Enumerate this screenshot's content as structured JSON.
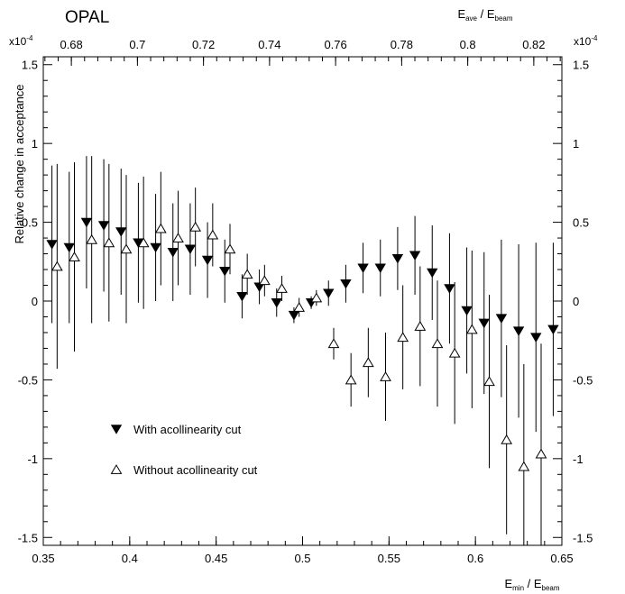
{
  "chart_data": {
    "type": "scatter",
    "experiment_label": "OPAL",
    "ylabel": "Relative change in acceptance",
    "x_bottom": {
      "label_main": "E",
      "label_sub": "min",
      "label_sep": " / E",
      "label_sub2": "beam",
      "range": [
        0.35,
        0.65
      ],
      "ticks": [
        "0.35",
        "0.4",
        "0.45",
        "0.5",
        "0.55",
        "0.6",
        "0.65"
      ]
    },
    "x_top": {
      "label_main": "E",
      "label_sub": "ave",
      "label_sep": " / E",
      "label_sub2": "beam",
      "range": [
        0.6715,
        0.8285
      ],
      "ticks": [
        "0.68",
        "0.7",
        "0.72",
        "0.74",
        "0.76",
        "0.78",
        "0.8",
        "0.82"
      ]
    },
    "y": {
      "range": [
        -1.55,
        1.55
      ],
      "ticks": [
        "1.5",
        "1",
        "0.5",
        "0",
        "-0.5",
        "-1",
        "-1.5"
      ],
      "exponent_base": "x10",
      "exponent_power": "-4"
    },
    "grid": false,
    "legend_position": "bottom-left",
    "series": [
      {
        "name": "With acollinearity cut",
        "marker": "filled-down-triangle",
        "points": [
          {
            "x": 0.355,
            "y": 0.36,
            "err": 0.5
          },
          {
            "x": 0.365,
            "y": 0.34,
            "err": 0.48
          },
          {
            "x": 0.375,
            "y": 0.5,
            "err": 0.42
          },
          {
            "x": 0.385,
            "y": 0.48,
            "err": 0.42
          },
          {
            "x": 0.395,
            "y": 0.44,
            "err": 0.4
          },
          {
            "x": 0.405,
            "y": 0.37,
            "err": 0.38
          },
          {
            "x": 0.415,
            "y": 0.34,
            "err": 0.34
          },
          {
            "x": 0.425,
            "y": 0.31,
            "err": 0.31
          },
          {
            "x": 0.435,
            "y": 0.33,
            "err": 0.29
          },
          {
            "x": 0.445,
            "y": 0.26,
            "err": 0.24
          },
          {
            "x": 0.455,
            "y": 0.19,
            "err": 0.2
          },
          {
            "x": 0.465,
            "y": 0.03,
            "err": 0.14
          },
          {
            "x": 0.475,
            "y": 0.09,
            "err": 0.11
          },
          {
            "x": 0.485,
            "y": -0.01,
            "err": 0.09
          },
          {
            "x": 0.495,
            "y": -0.09,
            "err": 0.05
          },
          {
            "x": 0.505,
            "y": -0.01,
            "err": 0.04
          },
          {
            "x": 0.515,
            "y": 0.05,
            "err": 0.08
          },
          {
            "x": 0.525,
            "y": 0.11,
            "err": 0.12
          },
          {
            "x": 0.535,
            "y": 0.21,
            "err": 0.16
          },
          {
            "x": 0.545,
            "y": 0.21,
            "err": 0.18
          },
          {
            "x": 0.555,
            "y": 0.27,
            "err": 0.2
          },
          {
            "x": 0.565,
            "y": 0.29,
            "err": 0.25
          },
          {
            "x": 0.575,
            "y": 0.18,
            "err": 0.3
          },
          {
            "x": 0.585,
            "y": 0.08,
            "err": 0.35
          },
          {
            "x": 0.595,
            "y": -0.06,
            "err": 0.4
          },
          {
            "x": 0.605,
            "y": -0.14,
            "err": 0.45
          },
          {
            "x": 0.615,
            "y": -0.11,
            "err": 0.5
          },
          {
            "x": 0.625,
            "y": -0.19,
            "err": 0.55
          },
          {
            "x": 0.635,
            "y": -0.23,
            "err": 0.6
          },
          {
            "x": 0.645,
            "y": -0.18,
            "err": 0.55
          }
        ]
      },
      {
        "name": "Without acollinearity cut",
        "marker": "open-up-triangle",
        "points": [
          {
            "x": 0.358,
            "y": 0.22,
            "err": 0.65
          },
          {
            "x": 0.368,
            "y": 0.28,
            "err": 0.6
          },
          {
            "x": 0.378,
            "y": 0.39,
            "err": 0.53
          },
          {
            "x": 0.388,
            "y": 0.37,
            "err": 0.5
          },
          {
            "x": 0.398,
            "y": 0.33,
            "err": 0.47
          },
          {
            "x": 0.408,
            "y": 0.37,
            "err": 0.42
          },
          {
            "x": 0.418,
            "y": 0.46,
            "err": 0.36
          },
          {
            "x": 0.428,
            "y": 0.4,
            "err": 0.3
          },
          {
            "x": 0.438,
            "y": 0.47,
            "err": 0.25
          },
          {
            "x": 0.448,
            "y": 0.42,
            "err": 0.2
          },
          {
            "x": 0.458,
            "y": 0.33,
            "err": 0.16
          },
          {
            "x": 0.468,
            "y": 0.17,
            "err": 0.13
          },
          {
            "x": 0.478,
            "y": 0.13,
            "err": 0.1
          },
          {
            "x": 0.488,
            "y": 0.08,
            "err": 0.08
          },
          {
            "x": 0.498,
            "y": -0.04,
            "err": 0.06
          },
          {
            "x": 0.508,
            "y": 0.02,
            "err": 0.05
          },
          {
            "x": 0.518,
            "y": -0.27,
            "err": 0.1
          },
          {
            "x": 0.528,
            "y": -0.5,
            "err": 0.17
          },
          {
            "x": 0.538,
            "y": -0.39,
            "err": 0.22
          },
          {
            "x": 0.548,
            "y": -0.48,
            "err": 0.28
          },
          {
            "x": 0.558,
            "y": -0.23,
            "err": 0.33
          },
          {
            "x": 0.568,
            "y": -0.16,
            "err": 0.38
          },
          {
            "x": 0.578,
            "y": -0.27,
            "err": 0.4
          },
          {
            "x": 0.588,
            "y": -0.33,
            "err": 0.45
          },
          {
            "x": 0.598,
            "y": -0.18,
            "err": 0.5
          },
          {
            "x": 0.608,
            "y": -0.51,
            "err": 0.55
          },
          {
            "x": 0.618,
            "y": -0.88,
            "err": 0.6
          },
          {
            "x": 0.628,
            "y": -1.05,
            "err": 0.65
          },
          {
            "x": 0.638,
            "y": -0.97,
            "err": 0.7
          }
        ]
      }
    ]
  }
}
